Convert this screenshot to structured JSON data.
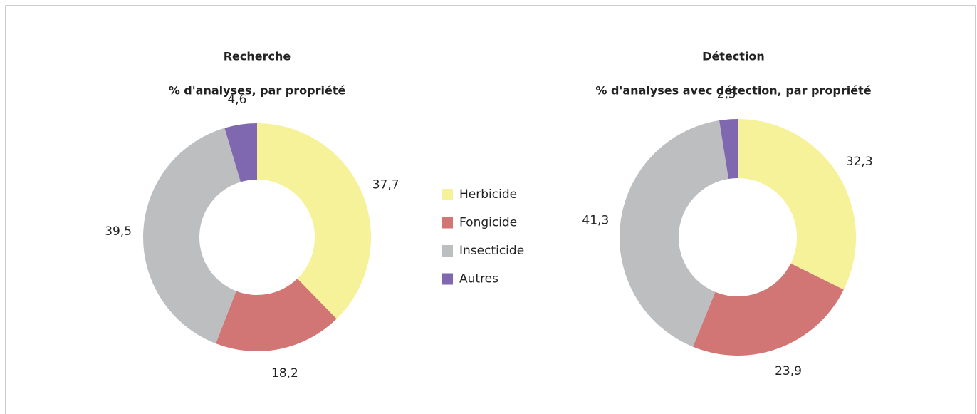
{
  "chart_data": [
    {
      "type": "donut",
      "title": "Recherche",
      "subtitle": "% d'analyses, par propriété",
      "categories": [
        "Herbicide",
        "Fongicide",
        "Insecticide",
        "Autres"
      ],
      "values": [
        37.7,
        18.2,
        39.5,
        4.6
      ],
      "value_labels": [
        "37,7",
        "18,2",
        "39,5",
        "4,6"
      ],
      "colors": [
        "#f5f29a",
        "#d27675",
        "#bcbec0",
        "#7f68b0"
      ]
    },
    {
      "type": "donut",
      "title": "Détection",
      "subtitle": "% d'analyses avec détection, par propriété",
      "values": [
        32.3,
        23.9,
        41.3,
        2.5
      ],
      "value_labels": [
        "32,3",
        "23,9",
        "41,3",
        "2,5"
      ],
      "colors": [
        "#f5f29a",
        "#d27675",
        "#bcbec0",
        "#7f68b0"
      ]
    }
  ]
}
